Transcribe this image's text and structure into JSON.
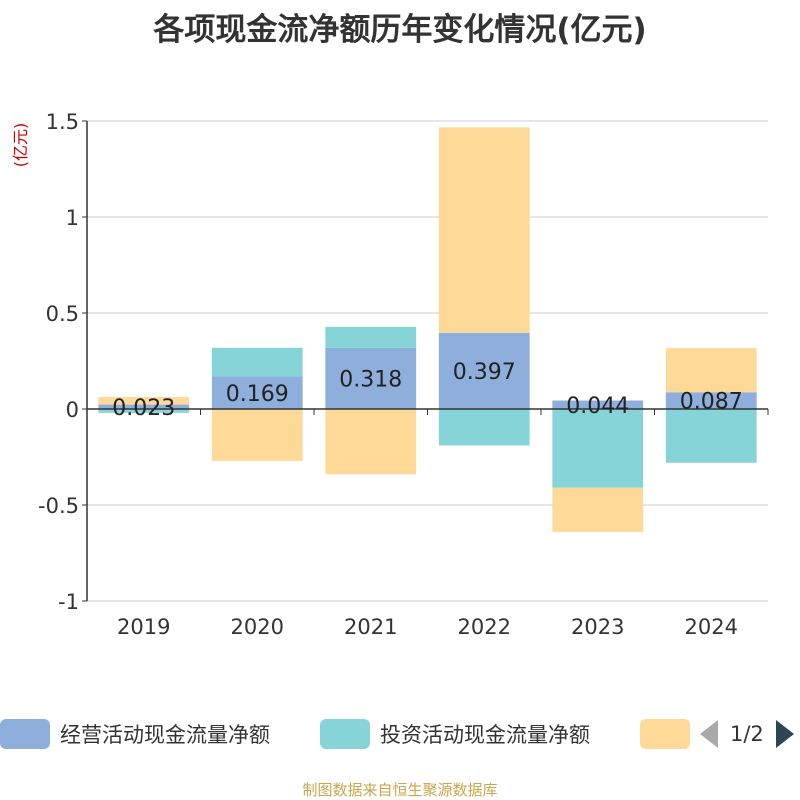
{
  "title": "各项现金流净额历年变化情况(亿元)",
  "source": "制图数据来自恒生聚源数据库",
  "colors": {
    "operating": "#8eaedb",
    "investing": "#87d4d8",
    "financing": "#fed998",
    "grid": "#cccccc",
    "axis": "#333333",
    "unit": "#cc0000"
  },
  "pager": {
    "text": "1/2"
  },
  "chart_data": {
    "type": "bar",
    "stacked": true,
    "title": "各项现金流净额历年变化情况(亿元)",
    "ylabel": "(亿元)",
    "ylim": [
      -1,
      1.5
    ],
    "yticks": [
      -1,
      -0.5,
      0,
      0.5,
      1,
      1.5
    ],
    "ytick_labels": [
      "-1",
      "-0.5",
      "0",
      "0.5",
      "1",
      "1.5"
    ],
    "categories": [
      "2019",
      "2020",
      "2021",
      "2022",
      "2023",
      "2024"
    ],
    "grid": true,
    "legend_position": "bottom",
    "series": [
      {
        "name": "经营活动现金流量净额",
        "color_key": "operating",
        "values": [
          0.023,
          0.169,
          0.318,
          0.397,
          0.044,
          0.087
        ],
        "labels": [
          "0.023",
          "0.169",
          "0.318",
          "0.397",
          "0.044",
          "0.087"
        ]
      },
      {
        "name": "投资活动现金流量净额",
        "color_key": "investing",
        "values": [
          -0.02,
          0.15,
          0.11,
          -0.19,
          -0.41,
          -0.28
        ]
      },
      {
        "name": "",
        "color_key": "financing",
        "values": [
          0.04,
          -0.27,
          -0.34,
          1.07,
          -0.23,
          0.23
        ]
      }
    ]
  }
}
